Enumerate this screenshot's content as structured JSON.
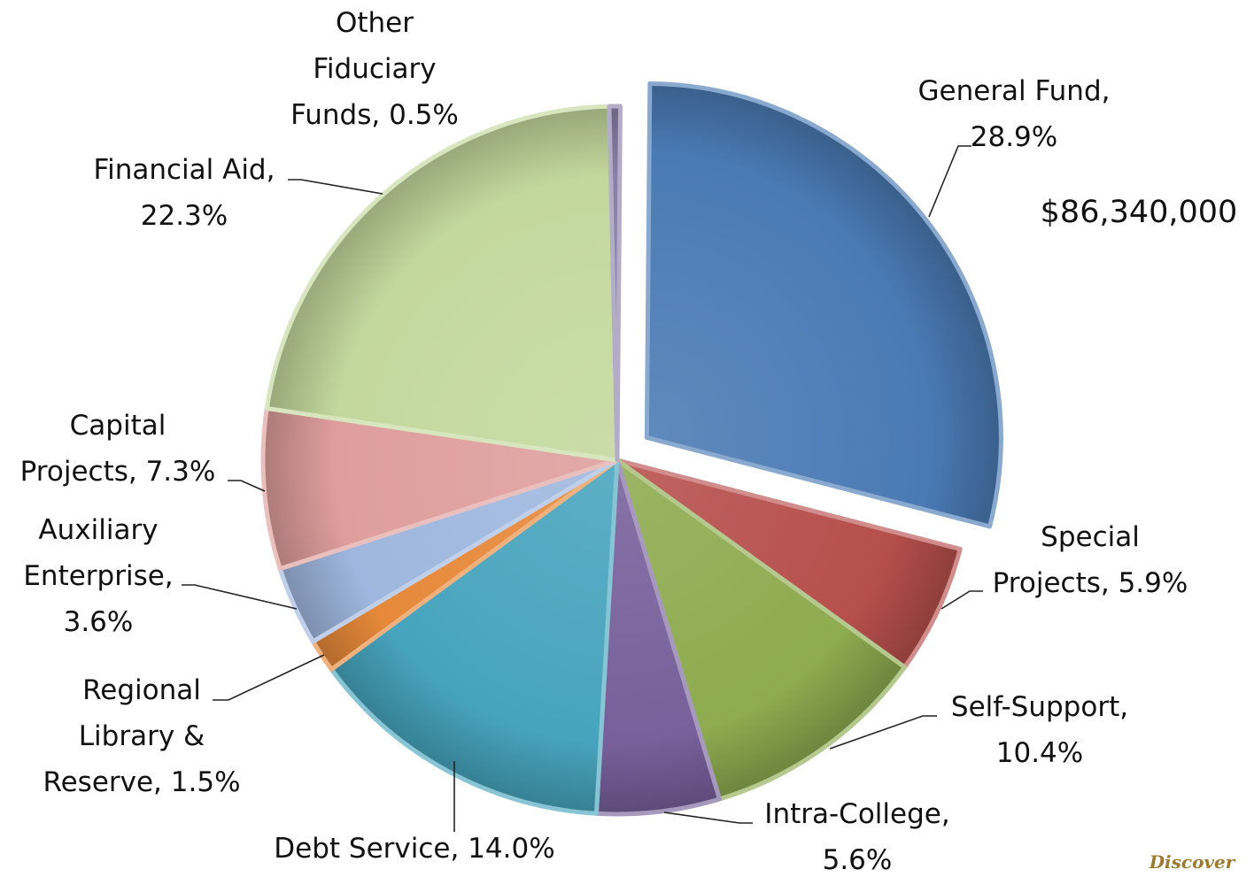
{
  "chart_data": {
    "type": "pie",
    "slices": [
      {
        "name": "General Fund",
        "value": 28.9,
        "label_lines": [
          "General Fund,",
          "28.9%"
        ],
        "color": "#4a7ab4",
        "exploded": true
      },
      {
        "name": "Special Projects",
        "value": 5.9,
        "label_lines": [
          "Special",
          "Projects, 5.9%"
        ],
        "color": "#b64f4c"
      },
      {
        "name": "Self-Support",
        "value": 10.4,
        "label_lines": [
          "Self-Support,",
          "10.4%"
        ],
        "color": "#8dab4f"
      },
      {
        "name": "Intra-College",
        "value": 5.6,
        "label_lines": [
          "Intra-College,",
          "5.6%"
        ],
        "color": "#77609b"
      },
      {
        "name": "Debt Service",
        "value": 14.0,
        "label_lines": [
          "Debt Service, 14.0%"
        ],
        "color": "#47a4bd"
      },
      {
        "name": "Regional Library & Reserve",
        "value": 1.5,
        "label_lines": [
          "Regional",
          "Library &",
          "Reserve, 1.5%"
        ],
        "color": "#e6893a"
      },
      {
        "name": "Auxiliary Enterprise",
        "value": 3.6,
        "label_lines": [
          "Auxiliary",
          "Enterprise,",
          "3.6%"
        ],
        "color": "#9fb7de"
      },
      {
        "name": "Capital Projects",
        "value": 7.3,
        "label_lines": [
          "Capital",
          "Projects, 7.3%"
        ],
        "color": "#de9e9d"
      },
      {
        "name": "Financial Aid",
        "value": 22.3,
        "label_lines": [
          "Financial Aid,",
          "22.3%"
        ],
        "color": "#c3d89d"
      },
      {
        "name": "Other Fiduciary Funds",
        "value": 0.5,
        "label_lines": [
          "Other",
          "Fiduciary",
          "Funds, 0.5%"
        ],
        "color": "#8a80a8"
      }
    ],
    "annotation": "$86,340,000"
  },
  "footer": {
    "brand": "Discover"
  }
}
